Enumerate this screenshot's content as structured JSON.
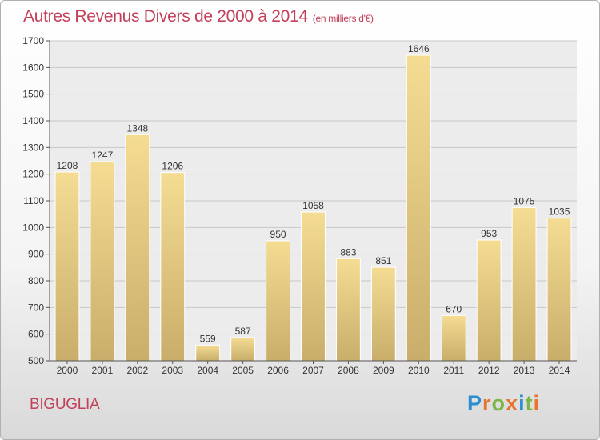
{
  "header": {
    "title": "Autres Revenus Divers de 2000 à 2014",
    "unit": "(en milliers d'€)"
  },
  "commune": "BIGUGLIA",
  "logo": {
    "text": "Proxiti",
    "letter_colors": [
      "#2a8fd0",
      "#e8742a",
      "#7ab648",
      "#e8742a",
      "#2a8fd0",
      "#7ab648",
      "#e8742a"
    ]
  },
  "colors": {
    "title": "#c2405a",
    "bar_light": "#f5dc93",
    "bar_dark": "#c8ae6a",
    "grid": "#c8c8c8",
    "plot_bg": "#ececec"
  },
  "chart_data": {
    "type": "bar",
    "title": "Autres Revenus Divers de 2000 à 2014",
    "subtitle": "(en milliers d'€)",
    "categories": [
      "2000",
      "2001",
      "2002",
      "2003",
      "2004",
      "2005",
      "2006",
      "2007",
      "2008",
      "2009",
      "2010",
      "2011",
      "2012",
      "2013",
      "2014"
    ],
    "values": [
      1208,
      1247,
      1348,
      1206,
      559,
      587,
      950,
      1058,
      883,
      851,
      1646,
      670,
      953,
      1075,
      1035
    ],
    "ylim": [
      500,
      1700
    ],
    "yticks": [
      500,
      600,
      700,
      800,
      900,
      1000,
      1100,
      1200,
      1300,
      1400,
      1500,
      1600,
      1700
    ],
    "grid": true,
    "data_labels": true
  }
}
